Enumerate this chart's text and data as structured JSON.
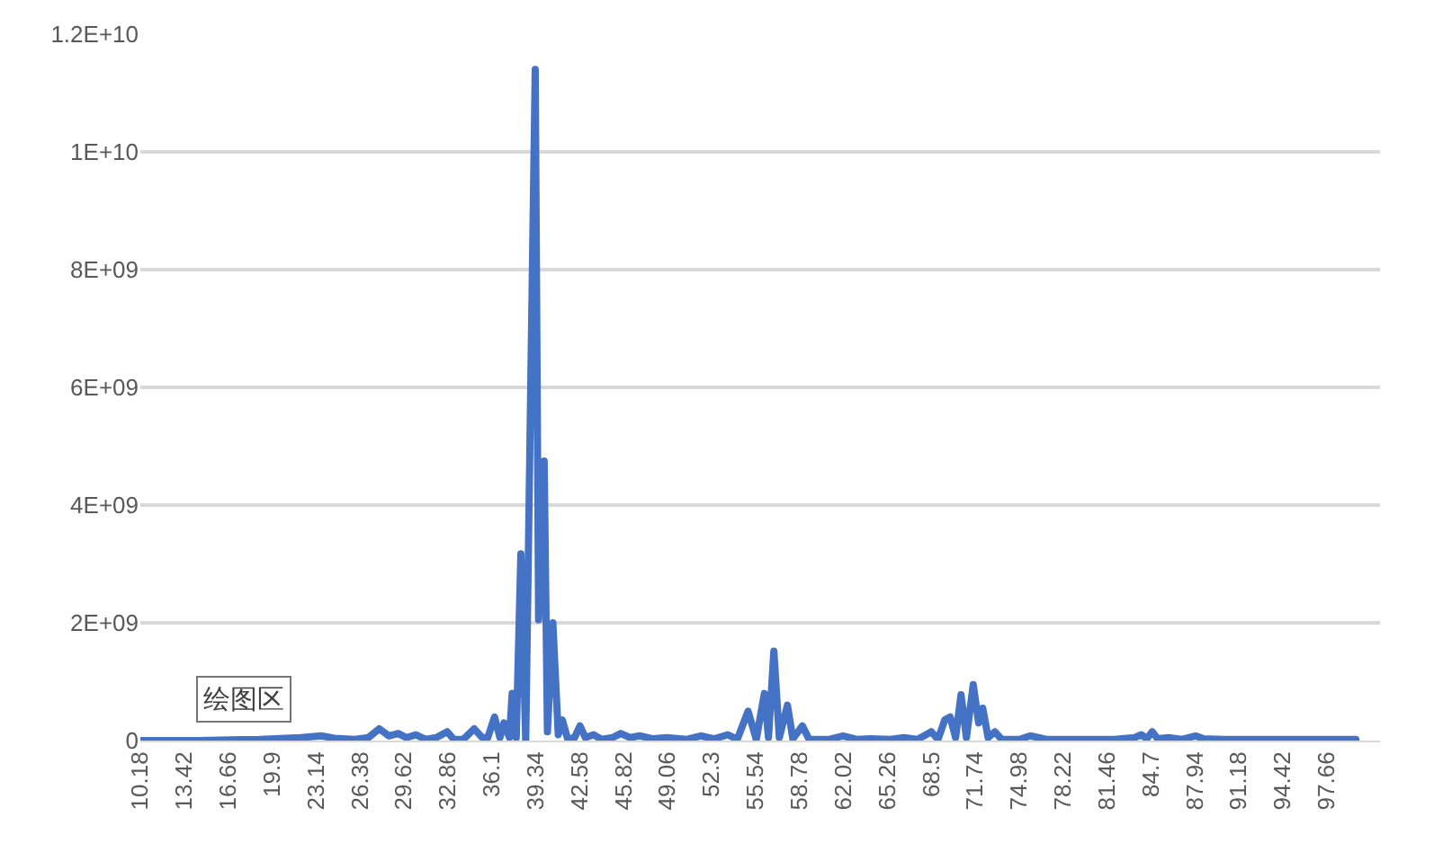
{
  "chart_data": {
    "type": "line",
    "x": [
      10.18,
      14.5,
      19.0,
      22.0,
      23.5,
      24.5,
      26.0,
      27.0,
      27.8,
      28.5,
      29.2,
      29.8,
      30.5,
      31.2,
      32.0,
      32.8,
      33.3,
      34.0,
      34.8,
      35.4,
      35.8,
      36.3,
      36.7,
      37.0,
      37.4,
      37.6,
      37.9,
      38.24,
      38.6,
      39.3,
      39.55,
      39.96,
      40.2,
      40.6,
      41.0,
      41.3,
      41.7,
      42.2,
      42.6,
      43.0,
      43.6,
      44.2,
      45.0,
      45.6,
      46.3,
      47.0,
      48.0,
      49.0,
      50.5,
      51.5,
      52.5,
      53.5,
      54.2,
      55.0,
      55.6,
      56.2,
      56.5,
      56.9,
      57.3,
      57.9,
      58.3,
      59.0,
      59.5,
      61.0,
      62.0,
      63.0,
      64.0,
      65.5,
      66.5,
      67.5,
      68.5,
      69.0,
      69.5,
      69.9,
      70.3,
      70.7,
      71.1,
      71.6,
      72.0,
      72.3,
      72.7,
      73.2,
      73.7,
      75.0,
      75.8,
      77.0,
      80.0,
      82.0,
      83.5,
      84.0,
      84.4,
      84.8,
      85.2,
      86.0,
      87.0,
      88.0,
      88.6,
      90.0,
      95.0,
      99.82
    ],
    "series": [
      {
        "color": "#4472c4",
        "values": [
          0,
          0,
          20000000.0,
          50000000.0,
          80000000.0,
          40000000.0,
          20000000.0,
          50000000.0,
          200000000.0,
          80000000.0,
          120000000.0,
          50000000.0,
          100000000.0,
          20000000.0,
          50000000.0,
          150000000.0,
          20000000.0,
          20000000.0,
          200000000.0,
          50000000.0,
          50000000.0,
          400000000.0,
          50000000.0,
          300000000.0,
          50000000.0,
          800000000.0,
          50000000.0,
          3170000000.0,
          0,
          11400000000.0,
          2050000000.0,
          4750000000.0,
          150000000.0,
          2000000000.0,
          100000000.0,
          350000000.0,
          20000000.0,
          50000000.0,
          250000000.0,
          50000000.0,
          100000000.0,
          20000000.0,
          50000000.0,
          120000000.0,
          50000000.0,
          80000000.0,
          30000000.0,
          50000000.0,
          20000000.0,
          80000000.0,
          30000000.0,
          100000000.0,
          20000000.0,
          500000000.0,
          20000000.0,
          800000000.0,
          50000000.0,
          1520000000.0,
          50000000.0,
          600000000.0,
          30000000.0,
          250000000.0,
          20000000.0,
          20000000.0,
          80000000.0,
          20000000.0,
          30000000.0,
          20000000.0,
          50000000.0,
          20000000.0,
          150000000.0,
          20000000.0,
          350000000.0,
          400000000.0,
          50000000.0,
          780000000.0,
          50000000.0,
          950000000.0,
          300000000.0,
          550000000.0,
          50000000.0,
          150000000.0,
          20000000.0,
          20000000.0,
          80000000.0,
          20000000.0,
          20000000.0,
          20000000.0,
          50000000.0,
          100000000.0,
          30000000.0,
          150000000.0,
          30000000.0,
          50000000.0,
          20000000.0,
          80000000.0,
          30000000.0,
          20000000.0,
          20000000.0,
          20000000.0
        ]
      }
    ],
    "xlim": [
      10.18,
      101.6
    ],
    "xticks": [
      10.18,
      13.42,
      16.66,
      19.9,
      23.14,
      26.38,
      29.62,
      32.86,
      36.1,
      39.34,
      42.58,
      45.82,
      49.06,
      52.3,
      55.54,
      58.78,
      62.02,
      65.26,
      68.5,
      71.74,
      74.98,
      78.22,
      81.46,
      84.7,
      87.94,
      91.18,
      94.42,
      97.66
    ],
    "ylim": [
      0,
      12000000000.0
    ],
    "yticks": [
      0,
      {
        "value": 2000000000.0,
        "label": "2E+09"
      },
      {
        "value": 4000000000.0,
        "label": "4E+09"
      },
      {
        "value": 6000000000.0,
        "label": "6E+09"
      },
      {
        "value": 8000000000.0,
        "label": "8E+09"
      },
      {
        "value": 10000000000.0,
        "label": "1E+10"
      },
      {
        "value": 12000000000.0,
        "label": "1.2E+10"
      }
    ],
    "grid": "y",
    "marker": "none",
    "line_style": "solid",
    "annotations": [
      "绘图区"
    ]
  }
}
